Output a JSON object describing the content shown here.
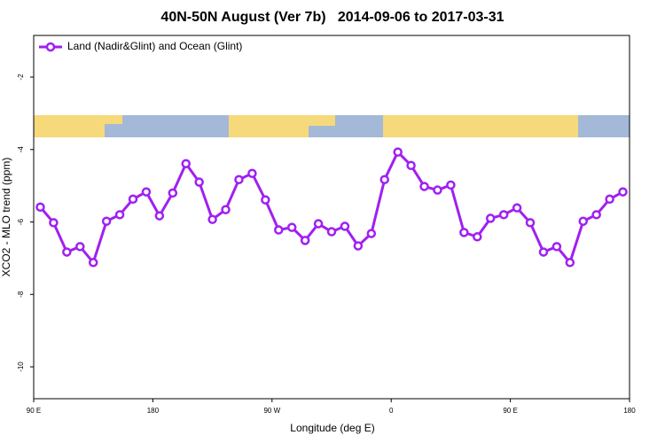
{
  "chart_data": {
    "type": "line",
    "title": "40N-50N August (Ver 7b)   2014-09-06 to 2017-03-31",
    "xlabel": "Longitude (deg E)",
    "ylabel": "XCO2 - MLO trend (ppm)",
    "x": [
      95,
      105,
      115,
      125,
      135,
      145,
      155,
      165,
      175,
      185,
      195,
      205,
      215,
      225,
      235,
      245,
      255,
      265,
      275,
      285,
      295,
      305,
      315,
      325,
      335,
      345,
      355,
      365,
      375,
      385,
      395,
      405,
      415,
      425,
      435,
      445,
      455,
      465,
      475,
      485,
      495,
      505,
      515,
      525,
      535
    ],
    "series": [
      {
        "name": "Land (Nadir&Glint) and Ocean (Glint)",
        "color": "#a020f0",
        "values": [
          -5.59,
          -6.02,
          -6.83,
          -6.68,
          -7.12,
          -5.98,
          -5.8,
          -5.37,
          -5.17,
          -5.83,
          -5.2,
          -4.39,
          -4.9,
          -5.93,
          -5.66,
          -4.83,
          -4.66,
          -5.39,
          -6.22,
          -6.15,
          -6.51,
          -6.05,
          -6.27,
          -6.12,
          -6.66,
          -6.32,
          -4.83,
          -4.07,
          -4.44,
          -5.02,
          -5.12,
          -4.98,
          -6.29,
          -6.41,
          -5.9,
          -5.8,
          -5.61,
          -6.02,
          -6.83,
          -6.68,
          -7.12,
          -5.98,
          -5.8,
          -5.37,
          -5.17
        ]
      }
    ],
    "xlim": [
      90,
      540
    ],
    "xticks": [
      {
        "value": 90,
        "label": "90 E"
      },
      180,
      {
        "value": 270,
        "label": "90 W"
      },
      {
        "value": 360,
        "label": "0"
      },
      {
        "value": 450,
        "label": "90 E"
      },
      {
        "value": 540,
        "label": "180"
      }
    ],
    "ylim": [
      -10.88,
      -0.85
    ],
    "yticks": [
      -2,
      -4,
      -6,
      -8,
      -10
    ],
    "legend": "top-left"
  }
}
